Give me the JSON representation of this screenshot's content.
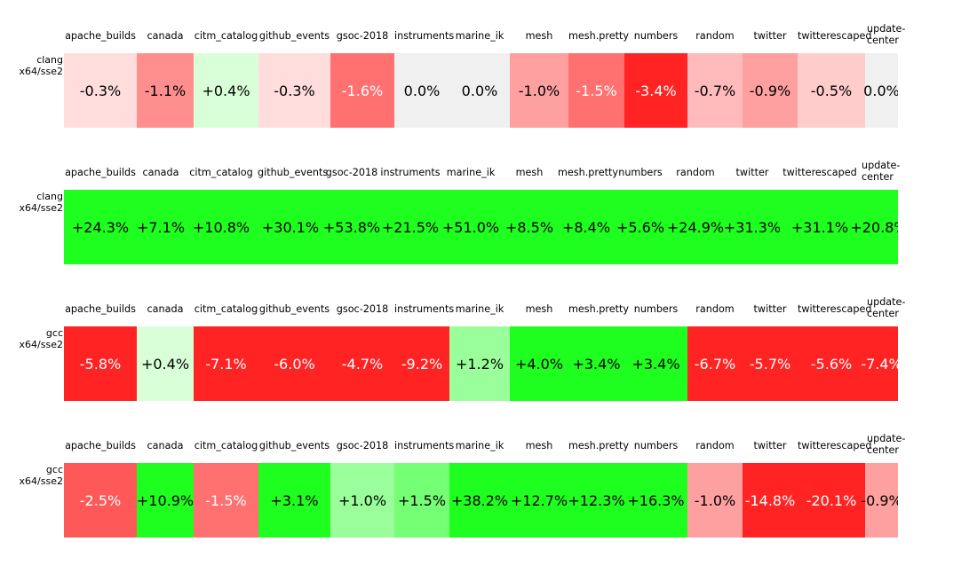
{
  "chart_data": [
    {
      "type": "heatmap",
      "row_label": [
        "clang",
        "x64/sse2"
      ],
      "categories": [
        "apache_builds",
        "canada",
        "citm_catalog",
        "github_events",
        "gsoc-2018",
        "instruments",
        "marine_ik",
        "mesh",
        "mesh.pretty",
        "numbers",
        "random",
        "twitter",
        "twitterescaped",
        "update-center"
      ],
      "values": [
        -0.3,
        -1.1,
        0.4,
        -0.3,
        -1.6,
        0.0,
        0.0,
        -1.0,
        -1.5,
        -3.4,
        -0.7,
        -0.9,
        -0.5,
        0.0
      ]
    },
    {
      "type": "heatmap",
      "row_label": [
        "clang",
        "x64/sse2"
      ],
      "categories": [
        "apache_builds",
        "canada",
        "citm_catalog",
        "github_events",
        "gsoc-2018",
        "instruments",
        "marine_ik",
        "mesh",
        "mesh.pretty",
        "numbers",
        "random",
        "twitter",
        "twitterescaped",
        "update-center"
      ],
      "values": [
        24.3,
        7.1,
        10.8,
        30.1,
        53.8,
        21.5,
        51.0,
        8.5,
        8.4,
        5.6,
        24.9,
        31.3,
        31.1,
        20.8
      ]
    },
    {
      "type": "heatmap",
      "row_label": [
        "gcc",
        "x64/sse2"
      ],
      "categories": [
        "apache_builds",
        "canada",
        "citm_catalog",
        "github_events",
        "gsoc-2018",
        "instruments",
        "marine_ik",
        "mesh",
        "mesh.pretty",
        "numbers",
        "random",
        "twitter",
        "twitterescaped",
        "update-center"
      ],
      "values": [
        -5.8,
        0.4,
        -7.1,
        -6.0,
        -4.7,
        -9.2,
        1.2,
        4.0,
        3.4,
        3.4,
        -6.7,
        -5.7,
        -5.6,
        -7.4
      ]
    },
    {
      "type": "heatmap",
      "row_label": [
        "gcc",
        "x64/sse2"
      ],
      "categories": [
        "apache_builds",
        "canada",
        "citm_catalog",
        "github_events",
        "gsoc-2018",
        "instruments",
        "marine_ik",
        "mesh",
        "mesh.pretty",
        "numbers",
        "random",
        "twitter",
        "twitterescaped",
        "update-center"
      ],
      "values": [
        -2.5,
        10.9,
        -1.5,
        3.1,
        1.0,
        1.5,
        38.2,
        12.7,
        12.3,
        16.3,
        -1.0,
        -14.8,
        -20.1,
        -0.9
      ]
    }
  ]
}
